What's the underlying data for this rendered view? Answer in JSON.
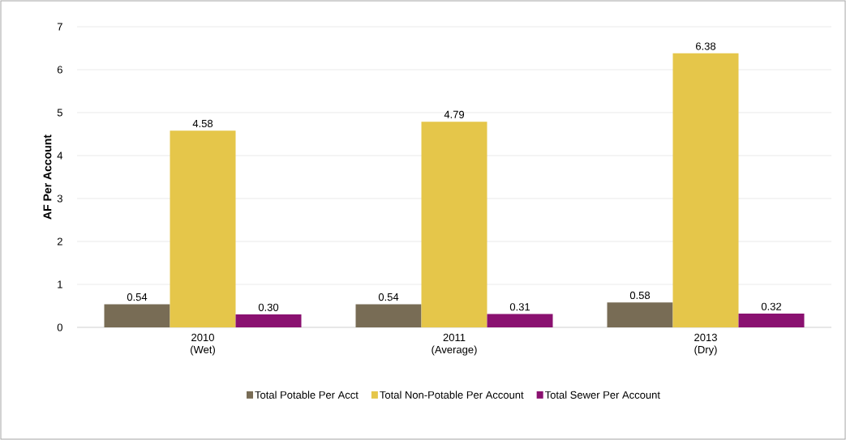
{
  "chart_data": {
    "type": "bar",
    "ylabel": "AF Per Account",
    "categories": [
      "2010 (Wet)",
      "2011 (Average)",
      "2013 (Dry)"
    ],
    "series": [
      {
        "name": "Total Potable Per Acct",
        "color": "#786c55",
        "values": [
          0.54,
          0.54,
          0.58
        ],
        "value_labels": [
          "0.54",
          "0.54",
          "0.58"
        ]
      },
      {
        "name": "Total Non-Potable Per Account",
        "color": "#e5c64a",
        "values": [
          4.58,
          4.79,
          6.38
        ],
        "value_labels": [
          "4.58",
          "4.79",
          "6.38"
        ]
      },
      {
        "name": "Total Sewer Per Account",
        "color": "#8a1170",
        "values": [
          0.3,
          0.31,
          0.32
        ],
        "value_labels": [
          "0.30",
          "0.31",
          "0.32"
        ]
      }
    ],
    "ylim": [
      0,
      7
    ],
    "yticks": [
      0,
      1,
      2,
      3,
      4,
      5,
      6,
      7
    ],
    "grid": "y",
    "legend": "bottom"
  }
}
